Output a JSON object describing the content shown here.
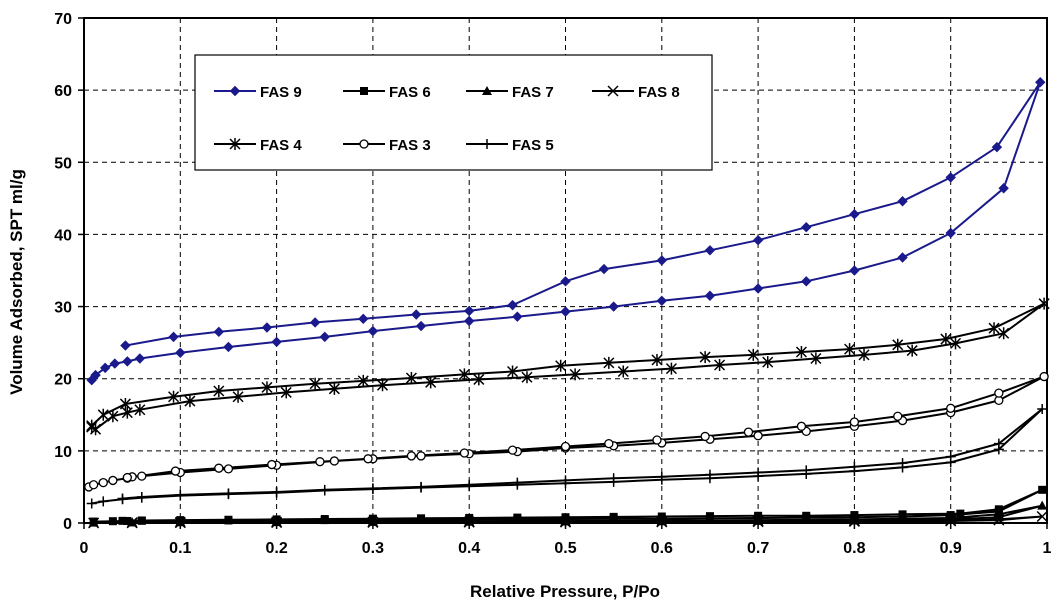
{
  "chart_data": {
    "type": "line",
    "title": "",
    "xlabel": "Relative Pressure, P/Po",
    "ylabel": "Volume Adsorbed, SPT ml/g",
    "xlim": [
      0,
      1
    ],
    "ylim": [
      0,
      70
    ],
    "x_ticks": [
      0,
      0.1,
      0.2,
      0.3,
      0.4,
      0.5,
      0.6,
      0.7,
      0.8,
      0.9,
      1
    ],
    "x_tick_labels": [
      "0",
      "0.1",
      "0.2",
      "0.3",
      "0.4",
      "0.5",
      "0.6",
      "0.7",
      "0.8",
      "0.9",
      "1"
    ],
    "y_ticks": [
      0,
      10,
      20,
      30,
      40,
      50,
      60,
      70
    ],
    "y_tick_labels": [
      "0",
      "10",
      "20",
      "30",
      "40",
      "50",
      "60",
      "70"
    ],
    "grid": "dashed",
    "legend_position": "top-left",
    "series": [
      {
        "name": "FAS 9",
        "color": "#1a1a8c",
        "marker": "diamond",
        "x": [
          0.008,
          0.012,
          0.022,
          0.032,
          0.045,
          0.058,
          0.1,
          0.15,
          0.2,
          0.25,
          0.3,
          0.35,
          0.4,
          0.45,
          0.5,
          0.55,
          0.6,
          0.65,
          0.7,
          0.75,
          0.8,
          0.85,
          0.9,
          0.955,
          0.993,
          0.948,
          0.9,
          0.85,
          0.8,
          0.75,
          0.7,
          0.65,
          0.6,
          0.54,
          0.5,
          0.445,
          0.4,
          0.345,
          0.29,
          0.24,
          0.19,
          0.14,
          0.093,
          0.043
        ],
        "y": [
          19.8,
          20.5,
          21.5,
          22.1,
          22.4,
          22.8,
          23.6,
          24.4,
          25.1,
          25.8,
          26.6,
          27.3,
          28.0,
          28.6,
          29.3,
          30.0,
          30.8,
          31.5,
          32.5,
          33.5,
          35.0,
          36.8,
          40.2,
          46.4,
          61.1,
          52.1,
          47.9,
          44.6,
          42.8,
          41.0,
          39.2,
          37.8,
          36.4,
          35.2,
          33.5,
          30.2,
          29.4,
          28.9,
          28.3,
          27.8,
          27.1,
          26.5,
          25.8,
          24.6
        ]
      },
      {
        "name": "FAS 6",
        "color": "#000000",
        "marker": "square",
        "x": [
          0.01,
          0.03,
          0.045,
          0.06,
          0.1,
          0.15,
          0.2,
          0.25,
          0.3,
          0.35,
          0.4,
          0.45,
          0.5,
          0.55,
          0.6,
          0.65,
          0.7,
          0.75,
          0.8,
          0.85,
          0.9,
          0.95,
          0.995,
          0.95,
          0.91,
          0.85,
          0.8,
          0.75,
          0.7,
          0.65,
          0.6,
          0.55,
          0.5,
          0.45,
          0.4,
          0.35,
          0.3,
          0.25,
          0.2,
          0.15,
          0.1,
          0.06,
          0.04
        ],
        "y": [
          0.2,
          0.25,
          0.28,
          0.3,
          0.32,
          0.35,
          0.38,
          0.4,
          0.42,
          0.45,
          0.48,
          0.5,
          0.55,
          0.58,
          0.6,
          0.65,
          0.7,
          0.75,
          0.8,
          0.9,
          1.1,
          1.6,
          4.6,
          1.9,
          1.3,
          1.2,
          1.1,
          1.0,
          1.0,
          0.95,
          0.9,
          0.85,
          0.8,
          0.75,
          0.7,
          0.65,
          0.6,
          0.55,
          0.5,
          0.45,
          0.4,
          0.35,
          0.3
        ]
      },
      {
        "name": "FAS 7",
        "color": "#000000",
        "marker": "triangle",
        "x": [
          0.01,
          0.05,
          0.1,
          0.2,
          0.3,
          0.4,
          0.5,
          0.6,
          0.7,
          0.8,
          0.9,
          0.95,
          0.995,
          0.95,
          0.9,
          0.8,
          0.7,
          0.6,
          0.5,
          0.4,
          0.3,
          0.2,
          0.1,
          0.05
        ],
        "y": [
          0.05,
          0.08,
          0.1,
          0.12,
          0.15,
          0.18,
          0.2,
          0.25,
          0.3,
          0.35,
          0.5,
          0.8,
          2.4,
          1.2,
          0.7,
          0.5,
          0.4,
          0.35,
          0.3,
          0.25,
          0.2,
          0.18,
          0.15,
          0.1
        ]
      },
      {
        "name": "FAS 8",
        "color": "#000000",
        "marker": "x",
        "x": [
          0.01,
          0.05,
          0.1,
          0.2,
          0.3,
          0.4,
          0.5,
          0.6,
          0.7,
          0.8,
          0.9,
          0.95,
          0.995,
          0.95,
          0.9,
          0.8,
          0.7,
          0.6,
          0.5,
          0.4,
          0.3,
          0.2,
          0.1,
          0.05
        ],
        "y": [
          0.0,
          0.02,
          0.04,
          0.06,
          0.08,
          0.1,
          0.12,
          0.15,
          0.18,
          0.22,
          0.28,
          0.4,
          0.9,
          0.5,
          0.35,
          0.3,
          0.25,
          0.2,
          0.18,
          0.15,
          0.12,
          0.1,
          0.08,
          0.05
        ]
      },
      {
        "name": "FAS 4",
        "color": "#000000",
        "marker": "asterisk",
        "x": [
          0.008,
          0.012,
          0.03,
          0.045,
          0.058,
          0.11,
          0.16,
          0.21,
          0.26,
          0.31,
          0.36,
          0.41,
          0.46,
          0.51,
          0.56,
          0.61,
          0.66,
          0.71,
          0.76,
          0.81,
          0.86,
          0.905,
          0.955,
          0.997,
          0.945,
          0.895,
          0.845,
          0.795,
          0.745,
          0.695,
          0.645,
          0.595,
          0.545,
          0.495,
          0.445,
          0.395,
          0.34,
          0.29,
          0.24,
          0.19,
          0.14,
          0.093,
          0.043,
          0.02,
          0.008
        ],
        "y": [
          13.3,
          13.0,
          14.8,
          15.3,
          15.7,
          16.9,
          17.5,
          18.1,
          18.6,
          19.1,
          19.5,
          19.9,
          20.2,
          20.6,
          21.0,
          21.4,
          21.9,
          22.3,
          22.8,
          23.3,
          23.9,
          24.9,
          26.3,
          30.4,
          27.0,
          25.5,
          24.7,
          24.1,
          23.7,
          23.3,
          23.0,
          22.6,
          22.2,
          21.8,
          21.0,
          20.6,
          20.1,
          19.7,
          19.3,
          18.8,
          18.3,
          17.5,
          16.5,
          15.0,
          13.5
        ]
      },
      {
        "name": "FAS 3",
        "color": "#000000",
        "marker": "circle",
        "x": [
          0.005,
          0.01,
          0.02,
          0.03,
          0.045,
          0.05,
          0.06,
          0.1,
          0.15,
          0.2,
          0.26,
          0.3,
          0.35,
          0.4,
          0.45,
          0.5,
          0.55,
          0.6,
          0.65,
          0.7,
          0.75,
          0.8,
          0.85,
          0.9,
          0.95,
          0.997,
          0.95,
          0.9,
          0.845,
          0.8,
          0.745,
          0.69,
          0.645,
          0.595,
          0.545,
          0.5,
          0.445,
          0.395,
          0.34,
          0.295,
          0.245,
          0.195,
          0.14,
          0.095,
          0.045
        ],
        "y": [
          5.0,
          5.3,
          5.6,
          5.9,
          6.2,
          6.4,
          6.5,
          7.0,
          7.5,
          8.0,
          8.6,
          8.9,
          9.3,
          9.6,
          9.9,
          10.4,
          10.7,
          11.1,
          11.6,
          12.1,
          12.7,
          13.4,
          14.2,
          15.3,
          17.0,
          20.3,
          18.0,
          15.9,
          14.8,
          14.0,
          13.4,
          12.6,
          12.0,
          11.5,
          11.0,
          10.6,
          10.1,
          9.7,
          9.3,
          8.9,
          8.5,
          8.1,
          7.6,
          7.2,
          6.3
        ]
      },
      {
        "name": "FAS 5",
        "color": "#000000",
        "marker": "plus",
        "x": [
          0.008,
          0.02,
          0.04,
          0.06,
          0.1,
          0.15,
          0.2,
          0.25,
          0.3,
          0.35,
          0.4,
          0.45,
          0.5,
          0.55,
          0.6,
          0.65,
          0.7,
          0.75,
          0.8,
          0.85,
          0.9,
          0.95,
          0.995,
          0.95,
          0.9,
          0.85,
          0.8,
          0.75,
          0.7,
          0.65,
          0.6,
          0.55,
          0.5,
          0.45,
          0.4,
          0.35,
          0.3,
          0.25,
          0.2,
          0.15,
          0.1,
          0.06,
          0.04
        ],
        "y": [
          2.7,
          3.0,
          3.3,
          3.5,
          3.8,
          4.0,
          4.2,
          4.5,
          4.7,
          4.9,
          5.1,
          5.3,
          5.5,
          5.7,
          6.0,
          6.2,
          6.5,
          6.8,
          7.2,
          7.7,
          8.4,
          10.2,
          15.8,
          11.0,
          9.2,
          8.3,
          7.8,
          7.3,
          7.0,
          6.7,
          6.4,
          6.2,
          5.9,
          5.6,
          5.3,
          5.0,
          4.8,
          4.6,
          4.3,
          4.1,
          3.9,
          3.6,
          3.4
        ]
      }
    ]
  }
}
